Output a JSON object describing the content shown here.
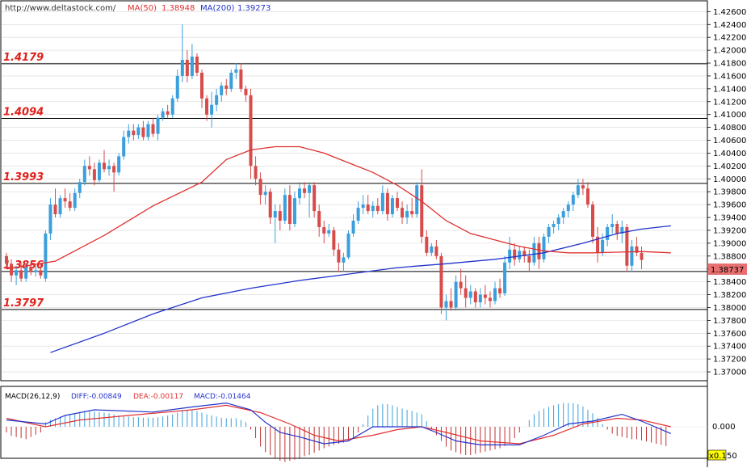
{
  "header": {
    "url": "http://www.deltastock.com/",
    "ma50_label": "MA(50)",
    "ma50_value": "1.38948",
    "ma200_label": "MA(200)",
    "ma200_value": "1.39273"
  },
  "macd_header": {
    "params": "MACD(26,12,9)",
    "diff": "DIFF:-0.00849",
    "dea": "DEA:-0.00117",
    "macd": "MACD:-0.01464"
  },
  "macd_axis": {
    "zero_label": "0.000",
    "scale_label": "x0.1",
    "scale_suffix": "50"
  },
  "current_price_label": "1.38737",
  "colors": {
    "bull": "#3a9fdc",
    "bear": "#d84b4b",
    "ma50": "#e03030",
    "ma200": "#2233cc",
    "diff": "#2233cc",
    "dea": "#e03030",
    "macd_pos": "#3a9fdc",
    "macd_neg": "#c03030",
    "level_text": "#e0201a",
    "price_tag": "#e87070"
  },
  "chart_data": {
    "type": "candlestick",
    "y_ticks": [
      "1.42600",
      "1.42400",
      "1.42200",
      "1.42000",
      "1.41800",
      "1.41600",
      "1.41400",
      "1.41200",
      "1.41000",
      "1.40800",
      "1.40600",
      "1.40400",
      "1.40200",
      "1.40000",
      "1.39800",
      "1.39600",
      "1.39400",
      "1.39200",
      "1.39000",
      "1.38800",
      "1.38600",
      "1.38400",
      "1.38200",
      "1.38000",
      "1.37800",
      "1.37600",
      "1.37400",
      "1.37200",
      "1.37000"
    ],
    "ylim": [
      1.369,
      1.4273
    ],
    "levels": [
      {
        "value": 1.4179,
        "label": "1.4179"
      },
      {
        "value": 1.4094,
        "label": "1.4094"
      },
      {
        "value": 1.3993,
        "label": "1.3993"
      },
      {
        "value": 1.3856,
        "label": "1.3856"
      },
      {
        "value": 1.3797,
        "label": "1.3797"
      }
    ],
    "candles": [
      [
        1.388,
        1.3885,
        1.386,
        1.3868
      ],
      [
        1.3868,
        1.3875,
        1.384,
        1.385
      ],
      [
        1.385,
        1.3865,
        1.3835,
        1.3858
      ],
      [
        1.3858,
        1.387,
        1.384,
        1.3845
      ],
      [
        1.3845,
        1.3868,
        1.384,
        1.3862
      ],
      [
        1.3862,
        1.387,
        1.385,
        1.3855
      ],
      [
        1.3855,
        1.3865,
        1.3848,
        1.3858
      ],
      [
        1.3858,
        1.3868,
        1.3845,
        1.385
      ],
      [
        1.3845,
        1.392,
        1.384,
        1.3915
      ],
      [
        1.3915,
        1.397,
        1.3905,
        1.396
      ],
      [
        1.396,
        1.3985,
        1.394,
        1.3945
      ],
      [
        1.3945,
        1.3975,
        1.394,
        1.397
      ],
      [
        1.397,
        1.3985,
        1.3955,
        1.3965
      ],
      [
        1.3965,
        1.3978,
        1.395,
        1.3955
      ],
      [
        1.3955,
        1.3985,
        1.395,
        1.3978
      ],
      [
        1.3978,
        1.4,
        1.397,
        1.3995
      ],
      [
        1.3995,
        1.403,
        1.399,
        1.402
      ],
      [
        1.402,
        1.4035,
        1.4005,
        1.4015
      ],
      [
        1.4015,
        1.4025,
        1.399,
        1.3998
      ],
      [
        1.3998,
        1.403,
        1.3995,
        1.4025
      ],
      [
        1.4025,
        1.4045,
        1.401,
        1.4015
      ],
      [
        1.4015,
        1.403,
        1.4005,
        1.402
      ],
      [
        1.402,
        1.4025,
        1.398,
        1.401
      ],
      [
        1.401,
        1.404,
        1.4005,
        1.4035
      ],
      [
        1.4035,
        1.4075,
        1.403,
        1.4065
      ],
      [
        1.4065,
        1.4085,
        1.4055,
        1.4075
      ],
      [
        1.4075,
        1.4085,
        1.406,
        1.4068
      ],
      [
        1.4068,
        1.4085,
        1.4062,
        1.408
      ],
      [
        1.408,
        1.409,
        1.406,
        1.4065
      ],
      [
        1.4065,
        1.409,
        1.406,
        1.4085
      ],
      [
        1.4085,
        1.4095,
        1.4065,
        1.407
      ],
      [
        1.407,
        1.41,
        1.406,
        1.4095
      ],
      [
        1.4095,
        1.411,
        1.409,
        1.4105
      ],
      [
        1.4105,
        1.4115,
        1.4095,
        1.41
      ],
      [
        1.41,
        1.413,
        1.4095,
        1.4125
      ],
      [
        1.4125,
        1.417,
        1.412,
        1.416
      ],
      [
        1.416,
        1.424,
        1.415,
        1.4185
      ],
      [
        1.4185,
        1.42,
        1.415,
        1.416
      ],
      [
        1.416,
        1.421,
        1.4155,
        1.419
      ],
      [
        1.419,
        1.4195,
        1.416,
        1.4165
      ],
      [
        1.4165,
        1.417,
        1.411,
        1.4125
      ],
      [
        1.4125,
        1.413,
        1.409,
        1.41
      ],
      [
        1.41,
        1.4135,
        1.408,
        1.4115
      ],
      [
        1.4115,
        1.414,
        1.4105,
        1.413
      ],
      [
        1.413,
        1.415,
        1.412,
        1.4145
      ],
      [
        1.4145,
        1.4155,
        1.413,
        1.414
      ],
      [
        1.414,
        1.417,
        1.4135,
        1.4165
      ],
      [
        1.4165,
        1.418,
        1.4155,
        1.417
      ],
      [
        1.417,
        1.418,
        1.4135,
        1.414
      ],
      [
        1.414,
        1.4145,
        1.412,
        1.413
      ],
      [
        1.413,
        1.414,
        1.4,
        1.402
      ],
      [
        1.402,
        1.4035,
        1.399,
        1.4
      ],
      [
        1.4,
        1.401,
        1.396,
        1.3975
      ],
      [
        1.3975,
        1.399,
        1.396,
        1.398
      ],
      [
        1.398,
        1.3985,
        1.393,
        1.394
      ],
      [
        1.394,
        1.396,
        1.39,
        1.395
      ],
      [
        1.395,
        1.396,
        1.392,
        1.3935
      ],
      [
        1.3935,
        1.3985,
        1.393,
        1.3975
      ],
      [
        1.3975,
        1.399,
        1.392,
        1.393
      ],
      [
        1.393,
        1.398,
        1.3925,
        1.397
      ],
      [
        1.397,
        1.3995,
        1.396,
        1.3985
      ],
      [
        1.3985,
        1.3995,
        1.397,
        1.3978
      ],
      [
        1.3978,
        1.3995,
        1.394,
        1.399
      ],
      [
        1.399,
        1.3995,
        1.394,
        1.395
      ],
      [
        1.395,
        1.396,
        1.391,
        1.3925
      ],
      [
        1.3925,
        1.3935,
        1.39,
        1.3915
      ],
      [
        1.3915,
        1.393,
        1.391,
        1.392
      ],
      [
        1.392,
        1.3925,
        1.388,
        1.389
      ],
      [
        1.389,
        1.39,
        1.3855,
        1.387
      ],
      [
        1.387,
        1.3885,
        1.3855,
        1.3878
      ],
      [
        1.3878,
        1.392,
        1.3875,
        1.3915
      ],
      [
        1.3915,
        1.3945,
        1.391,
        1.3935
      ],
      [
        1.3935,
        1.3965,
        1.393,
        1.3955
      ],
      [
        1.3955,
        1.3975,
        1.3945,
        1.396
      ],
      [
        1.396,
        1.3975,
        1.3945,
        1.395
      ],
      [
        1.395,
        1.3965,
        1.394,
        1.3958
      ],
      [
        1.3958,
        1.397,
        1.3945,
        1.395
      ],
      [
        1.395,
        1.399,
        1.3945,
        1.3978
      ],
      [
        1.3978,
        1.3985,
        1.3935,
        1.3945
      ],
      [
        1.3945,
        1.3975,
        1.394,
        1.397
      ],
      [
        1.397,
        1.398,
        1.395,
        1.3955
      ],
      [
        1.3955,
        1.3965,
        1.393,
        1.394
      ],
      [
        1.394,
        1.396,
        1.393,
        1.395
      ],
      [
        1.395,
        1.397,
        1.394,
        1.3945
      ],
      [
        1.3945,
        1.3995,
        1.394,
        1.399
      ],
      [
        1.399,
        1.4015,
        1.39,
        1.391
      ],
      [
        1.391,
        1.392,
        1.388,
        1.3885
      ],
      [
        1.3885,
        1.39,
        1.388,
        1.3895
      ],
      [
        1.3895,
        1.3905,
        1.3875,
        1.388
      ],
      [
        1.388,
        1.3885,
        1.379,
        1.38
      ],
      [
        1.38,
        1.382,
        1.378,
        1.381
      ],
      [
        1.381,
        1.383,
        1.3795,
        1.38
      ],
      [
        1.38,
        1.385,
        1.3795,
        1.384
      ],
      [
        1.384,
        1.386,
        1.382,
        1.383
      ],
      [
        1.383,
        1.385,
        1.38,
        1.3815
      ],
      [
        1.3815,
        1.3835,
        1.3805,
        1.3825
      ],
      [
        1.3825,
        1.383,
        1.38,
        1.3808
      ],
      [
        1.3808,
        1.383,
        1.38,
        1.382
      ],
      [
        1.382,
        1.3835,
        1.3805,
        1.3815
      ],
      [
        1.3815,
        1.3825,
        1.38,
        1.381
      ],
      [
        1.381,
        1.384,
        1.3805,
        1.383
      ],
      [
        1.383,
        1.3845,
        1.3815,
        1.3822
      ],
      [
        1.3822,
        1.388,
        1.3818,
        1.387
      ],
      [
        1.387,
        1.391,
        1.386,
        1.389
      ],
      [
        1.389,
        1.39,
        1.3865,
        1.3875
      ],
      [
        1.3875,
        1.3895,
        1.387,
        1.3888
      ],
      [
        1.3888,
        1.3895,
        1.387,
        1.388
      ],
      [
        1.388,
        1.389,
        1.3855,
        1.387
      ],
      [
        1.387,
        1.391,
        1.3865,
        1.39
      ],
      [
        1.39,
        1.391,
        1.386,
        1.3875
      ],
      [
        1.3875,
        1.3915,
        1.387,
        1.391
      ],
      [
        1.391,
        1.393,
        1.39,
        1.3925
      ],
      [
        1.3925,
        1.3935,
        1.3915,
        1.393
      ],
      [
        1.393,
        1.3945,
        1.392,
        1.394
      ],
      [
        1.394,
        1.3955,
        1.393,
        1.395
      ],
      [
        1.395,
        1.3965,
        1.394,
        1.396
      ],
      [
        1.396,
        1.398,
        1.395,
        1.3975
      ],
      [
        1.3975,
        1.4,
        1.397,
        1.399
      ],
      [
        1.399,
        1.4,
        1.3975,
        1.3985
      ],
      [
        1.3985,
        1.3995,
        1.3955,
        1.396
      ],
      [
        1.396,
        1.3965,
        1.39,
        1.391
      ],
      [
        1.391,
        1.3925,
        1.387,
        1.3885
      ],
      [
        1.3885,
        1.3915,
        1.388,
        1.3905
      ],
      [
        1.3905,
        1.393,
        1.3895,
        1.3925
      ],
      [
        1.3925,
        1.3945,
        1.3915,
        1.393
      ],
      [
        1.393,
        1.3935,
        1.3905,
        1.3915
      ],
      [
        1.3915,
        1.3935,
        1.39,
        1.3925
      ],
      [
        1.3925,
        1.393,
        1.3855,
        1.3865
      ],
      [
        1.3865,
        1.3905,
        1.3855,
        1.3895
      ],
      [
        1.3895,
        1.391,
        1.388,
        1.3885
      ],
      [
        1.3885,
        1.3895,
        1.386,
        1.3874
      ]
    ],
    "ma50": [
      [
        0,
        1.386
      ],
      [
        10,
        1.3872
      ],
      [
        20,
        1.3912
      ],
      [
        30,
        1.3958
      ],
      [
        40,
        1.3995
      ],
      [
        45,
        1.403
      ],
      [
        50,
        1.4045
      ],
      [
        55,
        1.405
      ],
      [
        60,
        1.405
      ],
      [
        65,
        1.404
      ],
      [
        70,
        1.4025
      ],
      [
        75,
        1.401
      ],
      [
        80,
        1.399
      ],
      [
        85,
        1.3965
      ],
      [
        90,
        1.3935
      ],
      [
        95,
        1.3915
      ],
      [
        100,
        1.3905
      ],
      [
        105,
        1.3895
      ],
      [
        110,
        1.3888
      ],
      [
        115,
        1.3885
      ],
      [
        120,
        1.3885
      ],
      [
        125,
        1.3886
      ],
      [
        130,
        1.3887
      ],
      [
        136,
        1.3885
      ]
    ],
    "ma200": [
      [
        9,
        1.373
      ],
      [
        20,
        1.376
      ],
      [
        30,
        1.379
      ],
      [
        40,
        1.3815
      ],
      [
        50,
        1.383
      ],
      [
        60,
        1.3842
      ],
      [
        70,
        1.3852
      ],
      [
        80,
        1.3862
      ],
      [
        90,
        1.3868
      ],
      [
        100,
        1.3875
      ],
      [
        110,
        1.3885
      ],
      [
        118,
        1.39
      ],
      [
        125,
        1.3915
      ],
      [
        130,
        1.3922
      ],
      [
        136,
        1.3927
      ]
    ],
    "macd_hist": [
      -0.1,
      -0.16,
      -0.18,
      -0.2,
      -0.22,
      -0.18,
      -0.14,
      -0.1,
      0.08,
      0.12,
      0.15,
      0.18,
      0.2,
      0.22,
      0.24,
      0.26,
      0.28,
      0.28,
      0.27,
      0.26,
      0.25,
      0.24,
      0.22,
      0.2,
      0.18,
      0.18,
      0.17,
      0.17,
      0.16,
      0.16,
      0.16,
      0.17,
      0.18,
      0.2,
      0.22,
      0.25,
      0.3,
      0.3,
      0.3,
      0.28,
      0.25,
      0.22,
      0.2,
      0.18,
      0.16,
      0.15,
      0.15,
      0.15,
      0.12,
      0.08,
      -0.05,
      -0.2,
      -0.35,
      -0.45,
      -0.5,
      -0.55,
      -0.6,
      -0.62,
      -0.6,
      -0.58,
      -0.55,
      -0.52,
      -0.5,
      -0.46,
      -0.42,
      -0.38,
      -0.35,
      -0.32,
      -0.3,
      -0.28,
      -0.24,
      -0.2,
      -0.1,
      0.05,
      0.2,
      0.32,
      0.38,
      0.4,
      0.4,
      0.38,
      0.35,
      0.32,
      0.3,
      0.28,
      0.25,
      0.22,
      0.1,
      -0.05,
      -0.15,
      -0.25,
      -0.35,
      -0.42,
      -0.45,
      -0.48,
      -0.5,
      -0.5,
      -0.48,
      -0.46,
      -0.44,
      -0.42,
      -0.4,
      -0.38,
      -0.34,
      -0.28,
      -0.2,
      -0.1,
      0.0,
      0.12,
      0.22,
      0.28,
      0.32,
      0.35,
      0.38,
      0.4,
      0.42,
      0.42,
      0.42,
      0.4,
      0.36,
      0.3,
      0.24,
      0.16,
      0.05,
      -0.05,
      -0.12,
      -0.16,
      -0.18,
      -0.2,
      -0.22,
      -0.22,
      -0.24,
      -0.26,
      -0.28,
      -0.3,
      -0.32,
      -0.34
    ],
    "macd_diff": [
      [
        0,
        0.12
      ],
      [
        8,
        0.05
      ],
      [
        12,
        0.2
      ],
      [
        18,
        0.3
      ],
      [
        30,
        0.26
      ],
      [
        38,
        0.35
      ],
      [
        45,
        0.42
      ],
      [
        50,
        0.3
      ],
      [
        53,
        0.08
      ],
      [
        56,
        -0.1
      ],
      [
        60,
        -0.18
      ],
      [
        65,
        -0.3
      ],
      [
        70,
        -0.25
      ],
      [
        75,
        0.0
      ],
      [
        80,
        0.0
      ],
      [
        85,
        0.0
      ],
      [
        88,
        -0.1
      ],
      [
        92,
        -0.25
      ],
      [
        97,
        -0.32
      ],
      [
        105,
        -0.32
      ],
      [
        110,
        -0.15
      ],
      [
        115,
        0.05
      ],
      [
        120,
        0.1
      ],
      [
        126,
        0.22
      ],
      [
        130,
        0.1
      ],
      [
        136,
        -0.12
      ]
    ],
    "macd_dea": [
      [
        0,
        0.15
      ],
      [
        8,
        0.0
      ],
      [
        15,
        0.12
      ],
      [
        25,
        0.2
      ],
      [
        38,
        0.3
      ],
      [
        45,
        0.38
      ],
      [
        52,
        0.25
      ],
      [
        58,
        0.05
      ],
      [
        63,
        -0.15
      ],
      [
        68,
        -0.25
      ],
      [
        75,
        -0.15
      ],
      [
        80,
        -0.05
      ],
      [
        85,
        0.0
      ],
      [
        90,
        -0.1
      ],
      [
        97,
        -0.25
      ],
      [
        105,
        -0.3
      ],
      [
        112,
        -0.15
      ],
      [
        118,
        0.05
      ],
      [
        125,
        0.15
      ],
      [
        130,
        0.12
      ],
      [
        136,
        0.0
      ]
    ]
  }
}
